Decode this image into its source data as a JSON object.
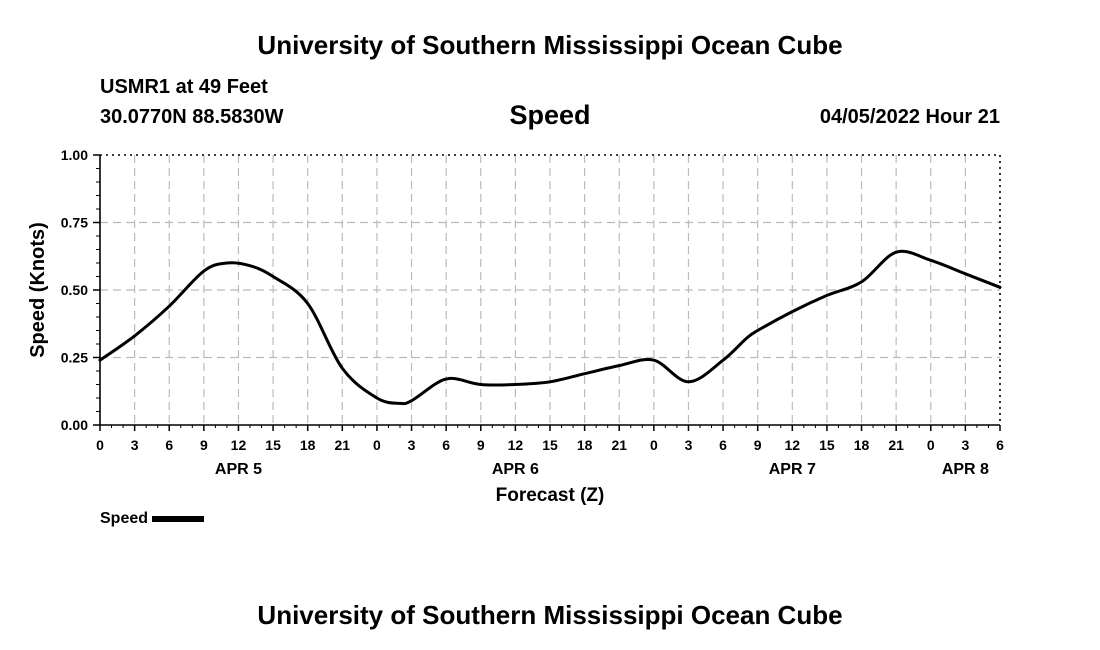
{
  "header": {
    "title": "University of Southern Mississippi Ocean Cube",
    "station": "USMR1 at 49 Feet",
    "coords": "30.0770N  88.5830W",
    "variable": "Speed",
    "datetime": "04/05/2022 Hour 21"
  },
  "footer": {
    "title": "University of Southern Mississippi Ocean Cube"
  },
  "legend": {
    "label": "Speed",
    "color": "#000000"
  },
  "chart_data": {
    "type": "line",
    "xlabel": "Forecast (Z)",
    "ylabel": "Speed (Knots)",
    "ylim": [
      0,
      1
    ],
    "xlim": [
      0,
      78
    ],
    "y_ticks": [
      "0.00",
      "0.25",
      "0.50",
      "0.75",
      "1.00"
    ],
    "y_tick_values": [
      0,
      0.25,
      0.5,
      0.75,
      1
    ],
    "x_tick_hours": [
      0,
      3,
      6,
      9,
      12,
      15,
      18,
      21,
      24,
      27,
      30,
      33,
      36,
      39,
      42,
      45,
      48,
      51,
      54,
      57,
      60,
      63,
      66,
      69,
      72,
      75,
      78
    ],
    "x_tick_labels": [
      "0",
      "3",
      "6",
      "9",
      "12",
      "15",
      "18",
      "21",
      "0",
      "3",
      "6",
      "9",
      "12",
      "15",
      "18",
      "21",
      "0",
      "3",
      "6",
      "9",
      "12",
      "15",
      "18",
      "21",
      "0",
      "3",
      "6"
    ],
    "day_labels": [
      {
        "label": "APR 5",
        "hour": 12
      },
      {
        "label": "APR 6",
        "hour": 36
      },
      {
        "label": "APR 7",
        "hour": 60
      },
      {
        "label": "APR 8",
        "hour": 75
      }
    ],
    "grid": true,
    "legend_position": "bottom-left",
    "series": [
      {
        "name": "Speed",
        "color": "#000000",
        "x": [
          0,
          3,
          6,
          9,
          11,
          13,
          15,
          18,
          21,
          24,
          26,
          27,
          29,
          30,
          31,
          33,
          36,
          39,
          42,
          45,
          48,
          51,
          54,
          56,
          57,
          60,
          63,
          66,
          69,
          72,
          75,
          78
        ],
        "y": [
          0.24,
          0.33,
          0.44,
          0.57,
          0.6,
          0.59,
          0.55,
          0.45,
          0.21,
          0.1,
          0.08,
          0.09,
          0.15,
          0.17,
          0.17,
          0.15,
          0.15,
          0.16,
          0.19,
          0.22,
          0.24,
          0.16,
          0.24,
          0.32,
          0.35,
          0.42,
          0.48,
          0.53,
          0.64,
          0.61,
          0.56,
          0.51
        ]
      }
    ]
  }
}
